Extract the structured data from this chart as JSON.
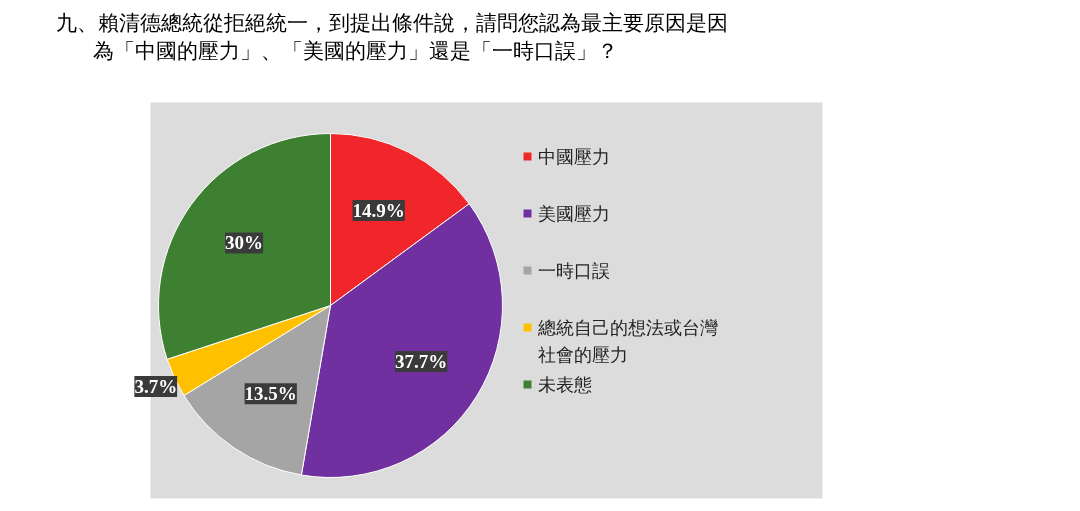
{
  "chart_data": {
    "type": "pie",
    "title": "九、賴清德總統從拒絕統一，到提出條件說，請問您認為最主要原因是因為「中國的壓力」、「美國的壓力」還是「一時口誤」？",
    "categories": [
      "中國壓力",
      "美國壓力",
      "一時口誤",
      "總統自己的想法或台灣社會的壓力",
      "未表態"
    ],
    "values": [
      14.9,
      37.7,
      13.5,
      3.7,
      30
    ],
    "colors": [
      "#f0262b",
      "#7030a0",
      "#a5a5a5",
      "#ffc000",
      "#3e8031"
    ],
    "value_labels": [
      "14.9%",
      "37.7%",
      "13.5%",
      "3.7%",
      "30%"
    ],
    "legend": "right"
  }
}
